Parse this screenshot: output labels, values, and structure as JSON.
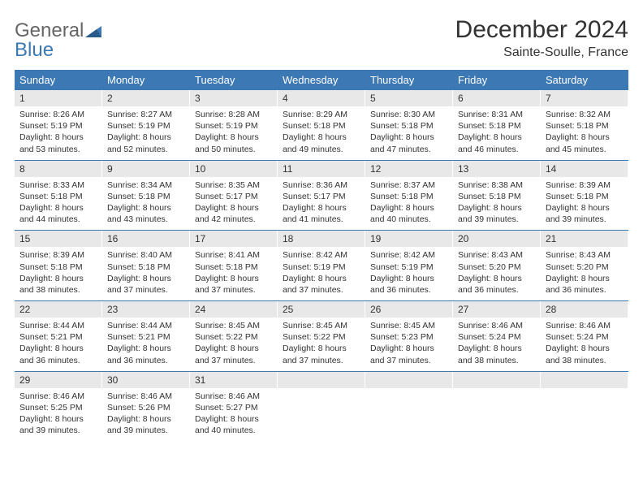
{
  "logo": {
    "line1": "General",
    "line2": "Blue"
  },
  "title": {
    "month": "December 2024",
    "location": "Sainte-Soulle, France"
  },
  "colors": {
    "header_bg": "#3c78b4",
    "daynum_bg": "#e8e8e8",
    "logo_blue": "#3c78b4",
    "logo_gray": "#666666"
  },
  "weekdays": [
    "Sunday",
    "Monday",
    "Tuesday",
    "Wednesday",
    "Thursday",
    "Friday",
    "Saturday"
  ],
  "weeks": [
    [
      {
        "num": "1",
        "sunrise": "8:26 AM",
        "sunset": "5:19 PM",
        "daylight": "8 hours and 53 minutes."
      },
      {
        "num": "2",
        "sunrise": "8:27 AM",
        "sunset": "5:19 PM",
        "daylight": "8 hours and 52 minutes."
      },
      {
        "num": "3",
        "sunrise": "8:28 AM",
        "sunset": "5:19 PM",
        "daylight": "8 hours and 50 minutes."
      },
      {
        "num": "4",
        "sunrise": "8:29 AM",
        "sunset": "5:18 PM",
        "daylight": "8 hours and 49 minutes."
      },
      {
        "num": "5",
        "sunrise": "8:30 AM",
        "sunset": "5:18 PM",
        "daylight": "8 hours and 47 minutes."
      },
      {
        "num": "6",
        "sunrise": "8:31 AM",
        "sunset": "5:18 PM",
        "daylight": "8 hours and 46 minutes."
      },
      {
        "num": "7",
        "sunrise": "8:32 AM",
        "sunset": "5:18 PM",
        "daylight": "8 hours and 45 minutes."
      }
    ],
    [
      {
        "num": "8",
        "sunrise": "8:33 AM",
        "sunset": "5:18 PM",
        "daylight": "8 hours and 44 minutes."
      },
      {
        "num": "9",
        "sunrise": "8:34 AM",
        "sunset": "5:18 PM",
        "daylight": "8 hours and 43 minutes."
      },
      {
        "num": "10",
        "sunrise": "8:35 AM",
        "sunset": "5:17 PM",
        "daylight": "8 hours and 42 minutes."
      },
      {
        "num": "11",
        "sunrise": "8:36 AM",
        "sunset": "5:17 PM",
        "daylight": "8 hours and 41 minutes."
      },
      {
        "num": "12",
        "sunrise": "8:37 AM",
        "sunset": "5:18 PM",
        "daylight": "8 hours and 40 minutes."
      },
      {
        "num": "13",
        "sunrise": "8:38 AM",
        "sunset": "5:18 PM",
        "daylight": "8 hours and 39 minutes."
      },
      {
        "num": "14",
        "sunrise": "8:39 AM",
        "sunset": "5:18 PM",
        "daylight": "8 hours and 39 minutes."
      }
    ],
    [
      {
        "num": "15",
        "sunrise": "8:39 AM",
        "sunset": "5:18 PM",
        "daylight": "8 hours and 38 minutes."
      },
      {
        "num": "16",
        "sunrise": "8:40 AM",
        "sunset": "5:18 PM",
        "daylight": "8 hours and 37 minutes."
      },
      {
        "num": "17",
        "sunrise": "8:41 AM",
        "sunset": "5:18 PM",
        "daylight": "8 hours and 37 minutes."
      },
      {
        "num": "18",
        "sunrise": "8:42 AM",
        "sunset": "5:19 PM",
        "daylight": "8 hours and 37 minutes."
      },
      {
        "num": "19",
        "sunrise": "8:42 AM",
        "sunset": "5:19 PM",
        "daylight": "8 hours and 36 minutes."
      },
      {
        "num": "20",
        "sunrise": "8:43 AM",
        "sunset": "5:20 PM",
        "daylight": "8 hours and 36 minutes."
      },
      {
        "num": "21",
        "sunrise": "8:43 AM",
        "sunset": "5:20 PM",
        "daylight": "8 hours and 36 minutes."
      }
    ],
    [
      {
        "num": "22",
        "sunrise": "8:44 AM",
        "sunset": "5:21 PM",
        "daylight": "8 hours and 36 minutes."
      },
      {
        "num": "23",
        "sunrise": "8:44 AM",
        "sunset": "5:21 PM",
        "daylight": "8 hours and 36 minutes."
      },
      {
        "num": "24",
        "sunrise": "8:45 AM",
        "sunset": "5:22 PM",
        "daylight": "8 hours and 37 minutes."
      },
      {
        "num": "25",
        "sunrise": "8:45 AM",
        "sunset": "5:22 PM",
        "daylight": "8 hours and 37 minutes."
      },
      {
        "num": "26",
        "sunrise": "8:45 AM",
        "sunset": "5:23 PM",
        "daylight": "8 hours and 37 minutes."
      },
      {
        "num": "27",
        "sunrise": "8:46 AM",
        "sunset": "5:24 PM",
        "daylight": "8 hours and 38 minutes."
      },
      {
        "num": "28",
        "sunrise": "8:46 AM",
        "sunset": "5:24 PM",
        "daylight": "8 hours and 38 minutes."
      }
    ],
    [
      {
        "num": "29",
        "sunrise": "8:46 AM",
        "sunset": "5:25 PM",
        "daylight": "8 hours and 39 minutes."
      },
      {
        "num": "30",
        "sunrise": "8:46 AM",
        "sunset": "5:26 PM",
        "daylight": "8 hours and 39 minutes."
      },
      {
        "num": "31",
        "sunrise": "8:46 AM",
        "sunset": "5:27 PM",
        "daylight": "8 hours and 40 minutes."
      },
      null,
      null,
      null,
      null
    ]
  ],
  "labels": {
    "sunrise": "Sunrise:",
    "sunset": "Sunset:",
    "daylight": "Daylight:"
  }
}
